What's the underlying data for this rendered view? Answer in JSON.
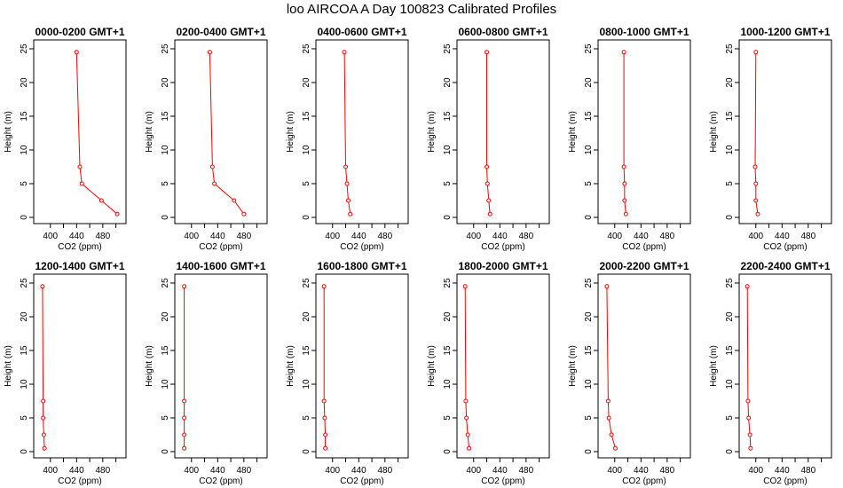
{
  "figure": {
    "title": "loo AIRCOA A  Day 100823  Calibrated Profiles"
  },
  "chart_data": {
    "type": "line",
    "title": "loo AIRCOA A  Day 100823  Calibrated Profiles",
    "xlabel": "CO2 (ppm)",
    "ylabel": "Height (m)",
    "xlim": [
      380,
      510
    ],
    "ylim": [
      0,
      25
    ],
    "x_ticks": [
      400,
      440,
      480
    ],
    "x_minor_ticks": [
      420,
      460,
      500
    ],
    "y_ticks": [
      0,
      5,
      10,
      15,
      20,
      25
    ],
    "line_color": "#ff0000",
    "marker": "open-circle",
    "layout": "2 rows x 6 columns",
    "panels": [
      {
        "title": "0000-0200 GMT+1",
        "co2": [
          502,
          478,
          448,
          445,
          440
        ],
        "height": [
          0.5,
          2.5,
          5,
          7.5,
          24.5
        ]
      },
      {
        "title": "0200-0400 GMT+1",
        "co2": [
          480,
          465,
          435,
          432,
          428
        ],
        "height": [
          0.5,
          2.5,
          5,
          7.5,
          24.5
        ]
      },
      {
        "title": "0400-0600 GMT+1",
        "co2": [
          427,
          424,
          422,
          420,
          418
        ],
        "height": [
          0.5,
          2.5,
          5,
          7.5,
          24.5
        ]
      },
      {
        "title": "0600-0800 GMT+1",
        "co2": [
          425,
          423,
          421,
          420,
          420
        ],
        "height": [
          0.5,
          2.5,
          5,
          7.5,
          24.5
        ]
      },
      {
        "title": "0800-1000 GMT+1",
        "co2": [
          417,
          415,
          415,
          414,
          414
        ],
        "height": [
          0.5,
          2.5,
          5,
          7.5,
          24.5
        ]
      },
      {
        "title": "1000-1200 GMT+1",
        "co2": [
          403,
          400,
          400,
          399,
          400
        ],
        "height": [
          0.5,
          2.5,
          5,
          7.5,
          24.5
        ]
      },
      {
        "title": "1200-1400 GMT+1",
        "co2": [
          391,
          390,
          389,
          389,
          388
        ],
        "height": [
          0.5,
          2.5,
          5,
          7.5,
          24.5
        ]
      },
      {
        "title": "1400-1600 GMT+1",
        "co2": [
          389,
          389,
          389,
          389,
          389
        ],
        "height": [
          0.5,
          2.5,
          5,
          7.5,
          24.5
        ]
      },
      {
        "title": "1600-1800 GMT+1",
        "co2": [
          389,
          389,
          388,
          387,
          387
        ],
        "height": [
          0.5,
          2.5,
          5,
          7.5,
          24.5
        ]
      },
      {
        "title": "1800-2000 GMT+1",
        "co2": [
          393,
          391,
          389,
          388,
          387
        ],
        "height": [
          0.5,
          2.5,
          5,
          7.5,
          24.5
        ]
      },
      {
        "title": "2000-2200 GMT+1",
        "co2": [
          401,
          395,
          391,
          390,
          388
        ],
        "height": [
          0.5,
          2.5,
          5,
          7.5,
          24.5
        ]
      },
      {
        "title": "2200-2400 GMT+1",
        "co2": [
          392,
          391,
          389,
          388,
          387
        ],
        "height": [
          0.5,
          2.5,
          5,
          7.5,
          24.5
        ]
      }
    ]
  }
}
